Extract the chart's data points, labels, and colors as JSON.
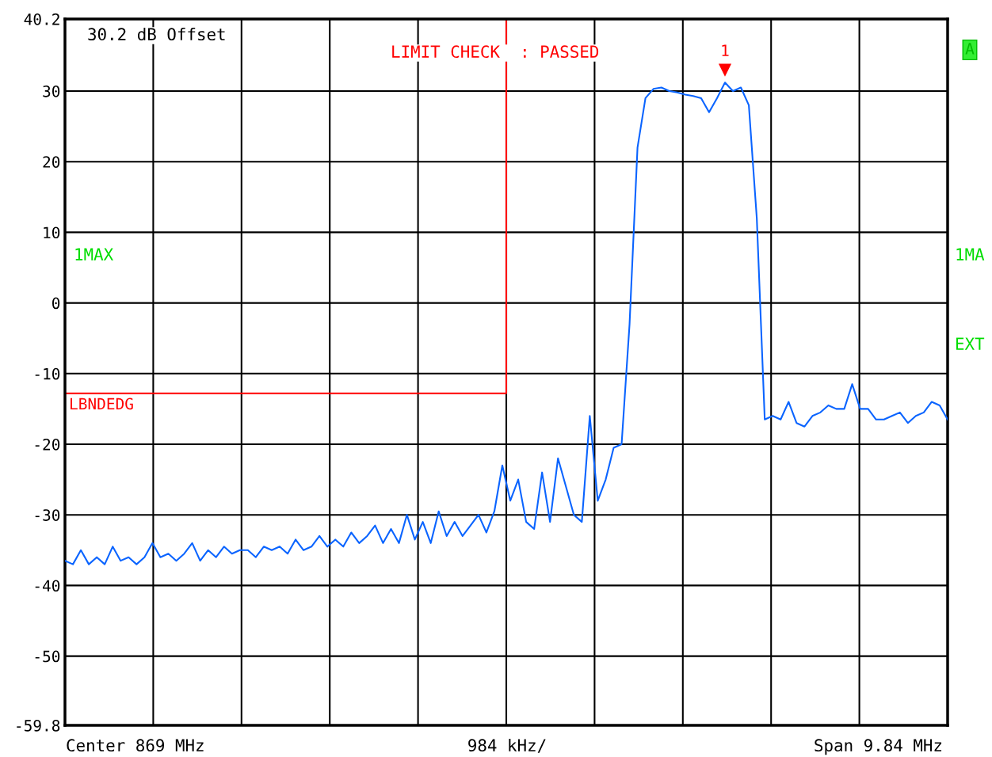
{
  "chart_data": {
    "type": "line",
    "annotations": [
      "30.2 dB Offset",
      "LIMIT CHECK  : PASSED",
      "1MAX",
      "1MA",
      "EXT",
      "A",
      "Center 869 MHz",
      "984 kHz/",
      "Span 9.84 MHz",
      "1"
    ],
    "categories": [
      null,
      null,
      null,
      null,
      null,
      null,
      null,
      null,
      null,
      null,
      null,
      null,
      null,
      null,
      null,
      null,
      null,
      null,
      null,
      null,
      null,
      null,
      null,
      null,
      null,
      null,
      null,
      null,
      null,
      null,
      null,
      null,
      null,
      null,
      null,
      null,
      null,
      null,
      null,
      null,
      null,
      null,
      null,
      null,
      null,
      null,
      null,
      null,
      null,
      null,
      null,
      null,
      null,
      null,
      null,
      null,
      null,
      null,
      null,
      null,
      null,
      null,
      null,
      null,
      null,
      null,
      null,
      null,
      null,
      null,
      null,
      null,
      null,
      null,
      null,
      null,
      null,
      null,
      null,
      null,
      null,
      null,
      null,
      null,
      null,
      null,
      null,
      null,
      null,
      null,
      null,
      null,
      null,
      null,
      null,
      null,
      null,
      null,
      null,
      null,
      null,
      null,
      null,
      null,
      null,
      null,
      null,
      null,
      null,
      null,
      null,
      null
    ],
    "ylim": [
      -59.8,
      40.2
    ],
    "yticks": [
      40.2,
      30,
      20,
      10,
      0,
      -10,
      -20,
      -30,
      -40,
      -50,
      -59.8
    ],
    "tick_labels": "y",
    "grid": true,
    "legend": false,
    "ref_lines": [
      {
        "axis": "y",
        "value": -12.8,
        "label": "LBNDEDG",
        "color": "#ff0000"
      }
    ],
    "series": [
      {
        "color": "#0a64ff",
        "values": [
          -36.5,
          -37,
          -35,
          -37,
          -36,
          -37,
          -34.5,
          -36.5,
          -36,
          -37,
          -36,
          -34,
          -36,
          -35.5,
          -36.5,
          -35.5,
          -34,
          -36.5,
          -35,
          -36,
          -34.5,
          -35.5,
          -35,
          -35,
          -36,
          -34.5,
          -35,
          -34.5,
          -35.5,
          -33.5,
          -35,
          -34.5,
          -33,
          -34.5,
          -33.5,
          -34.5,
          -32.5,
          -34,
          -33,
          -31.5,
          -34,
          -32,
          -34,
          -30,
          -33.5,
          -31,
          -34,
          -29.5,
          -33,
          -31,
          -33,
          -31.5,
          -30,
          -32.5,
          -29.5,
          -23,
          -28,
          -25,
          -31,
          -32,
          -24,
          -31,
          -22,
          -26,
          -30,
          -31,
          -16,
          -28,
          -25,
          -20.5,
          -20,
          -3,
          22,
          29,
          30.3,
          30.5,
          30,
          29.8,
          29.5,
          29.3,
          29,
          27,
          29,
          31.2,
          30,
          30.5,
          28,
          12,
          -16.5,
          -16,
          -16.5,
          -14,
          -17,
          -17.5,
          -16,
          -15.5,
          -14.5,
          -15,
          -15,
          -11.5,
          -15,
          -15,
          -16.5,
          -16.5,
          -16,
          -15.5,
          -17,
          -16,
          -15.5,
          -14,
          -14.5,
          -16.5
        ]
      }
    ]
  }
}
